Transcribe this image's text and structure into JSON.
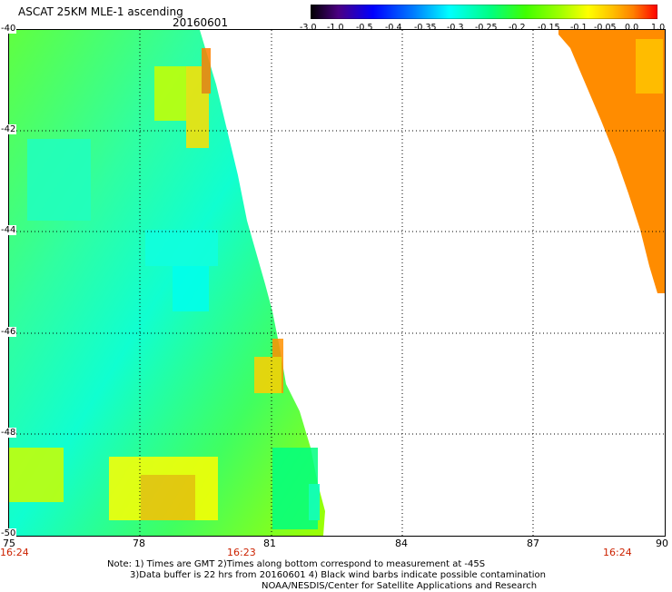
{
  "header": {
    "title": "ASCAT 25KM MLE-1 ascending",
    "date": "20160601"
  },
  "colorbar": {
    "labels": [
      "-3.0",
      "-1.0",
      "-0.5",
      "-0.4",
      "-0.35",
      "-0.3",
      "-0.25",
      "-0.2",
      "-0.15",
      "-0.1",
      "-0.05",
      "0.0",
      "1.0"
    ],
    "colors": [
      "#000000",
      "#4b0082",
      "#0000ff",
      "#0080ff",
      "#00ffff",
      "#00ff80",
      "#00ff00",
      "#80ff00",
      "#ffff00",
      "#ffc000",
      "#ff8000",
      "#ff4000",
      "#ff0000"
    ]
  },
  "axes": {
    "x_labels": [
      "75",
      "78",
      "81",
      "84",
      "87",
      "90"
    ],
    "y_labels": [
      "-40",
      "-42",
      "-44",
      "-46",
      "-48",
      "-50"
    ],
    "time_labels": [
      "16:24",
      "16:23",
      "16:24"
    ]
  },
  "notes": [
    "Note: 1) Times are GMT 2)Times along bottom correspond to measurement at -45S",
    "3)Data buffer is 22 hrs from 20160601 4) Black wind barbs indicate possible contamination",
    "NOAA/NESDIS/Center for Satellite Applications and Research"
  ]
}
